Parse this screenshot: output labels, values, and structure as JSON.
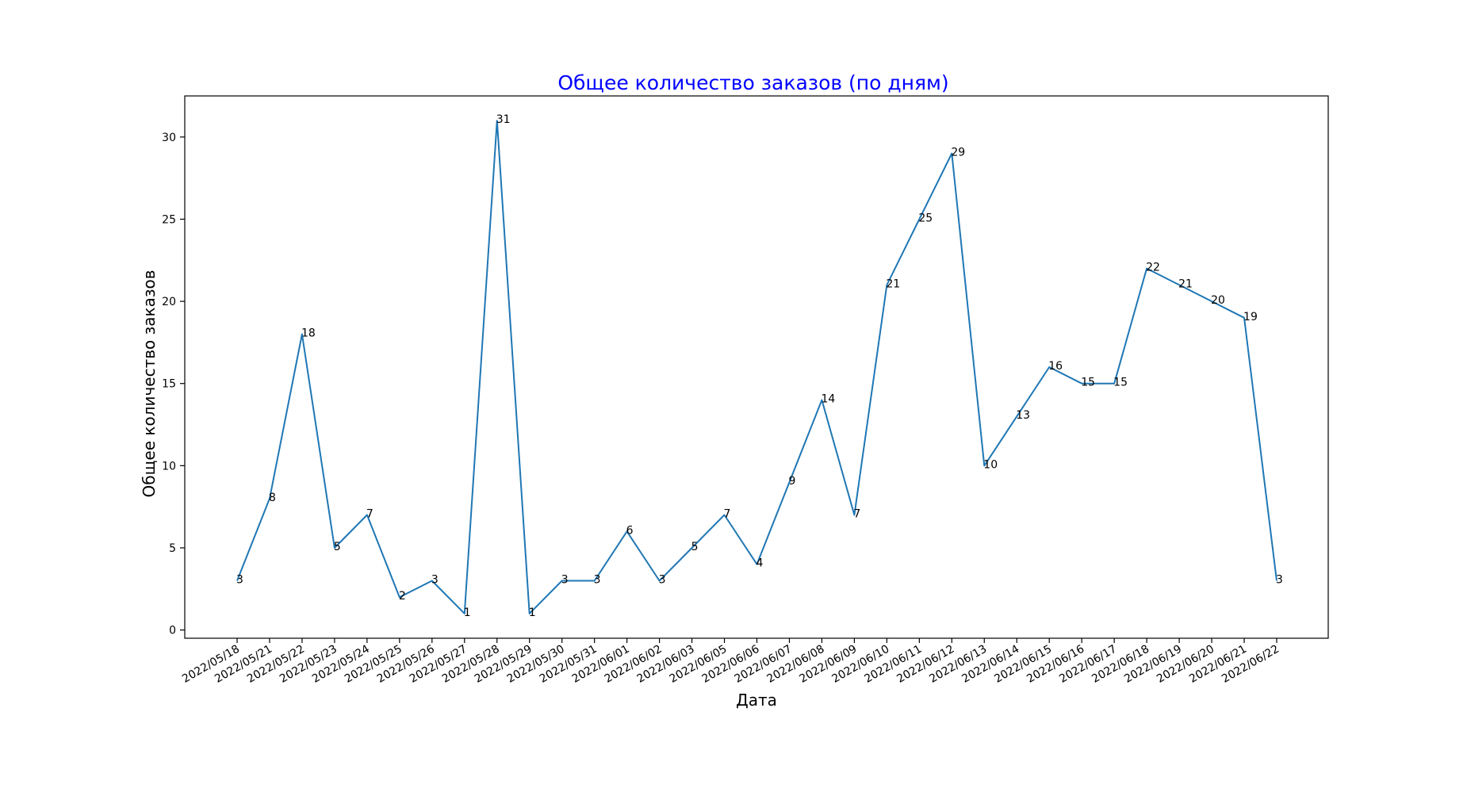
{
  "chart_data": {
    "type": "line",
    "title": "Общее количество заказов (по дням)",
    "xlabel": "Дата",
    "ylabel": "Общее количество заказов",
    "x": [
      "2022/05/18",
      "2022/05/21",
      "2022/05/22",
      "2022/05/23",
      "2022/05/24",
      "2022/05/25",
      "2022/05/26",
      "2022/05/27",
      "2022/05/28",
      "2022/05/29",
      "2022/05/30",
      "2022/05/31",
      "2022/06/01",
      "2022/06/02",
      "2022/06/03",
      "2022/06/05",
      "2022/06/06",
      "2022/06/07",
      "2022/06/08",
      "2022/06/09",
      "2022/06/10",
      "2022/06/11",
      "2022/06/12",
      "2022/06/13",
      "2022/06/14",
      "2022/06/15",
      "2022/06/16",
      "2022/06/17",
      "2022/06/18",
      "2022/06/19",
      "2022/06/20",
      "2022/06/21",
      "2022/06/22"
    ],
    "series": [
      {
        "values": [
          3,
          8,
          18,
          5,
          7,
          2,
          3,
          1,
          31,
          1,
          3,
          3,
          6,
          3,
          5,
          7,
          4,
          9,
          14,
          7,
          21,
          25,
          29,
          10,
          13,
          16,
          15,
          15,
          22,
          21,
          20,
          19,
          3
        ]
      }
    ],
    "ylim": [
      -0.5,
      32.5
    ],
    "yticks": [
      0,
      5,
      10,
      15,
      20,
      25,
      30
    ],
    "grid": false,
    "legend": "none",
    "title_color": "#0000ff",
    "line_color": "#1f77b4"
  }
}
